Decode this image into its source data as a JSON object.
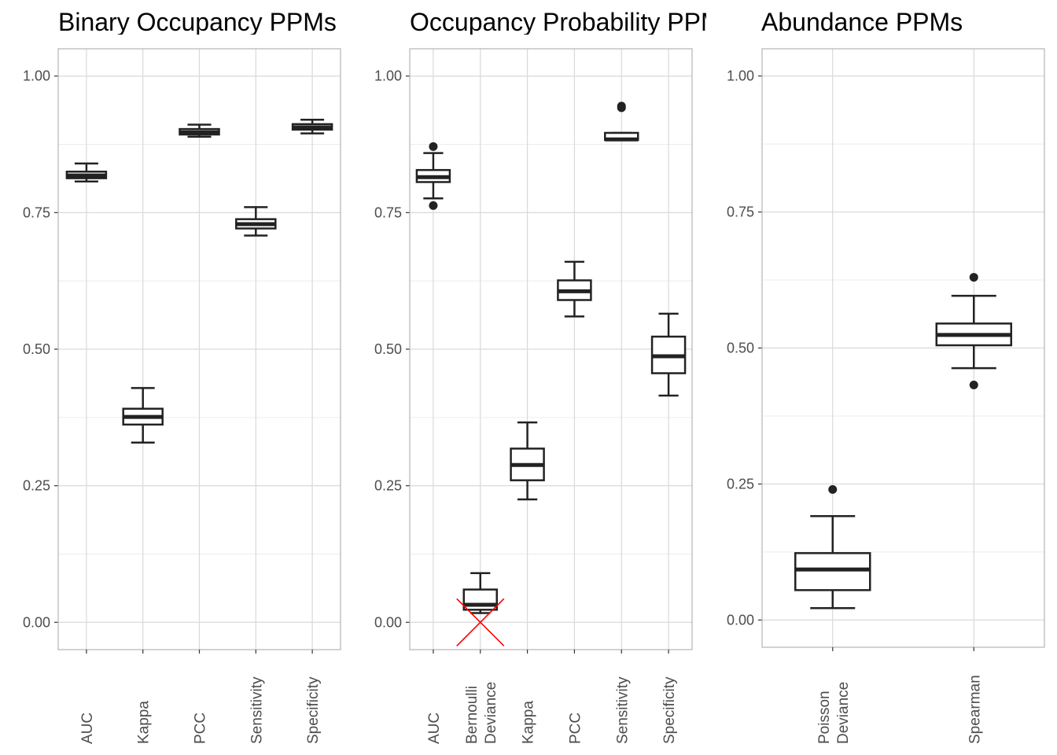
{
  "chart_data": [
    {
      "type": "box",
      "title": "Binary Occupancy PPMs",
      "ylim": [
        -0.05,
        1.05
      ],
      "yticks": [
        "0.00",
        "0.25",
        "0.50",
        "0.75",
        "1.00"
      ],
      "grid": true,
      "categories": [
        "AUC",
        "Kappa",
        "PCC",
        "Sensitivity",
        "Specificity"
      ],
      "boxes": [
        {
          "min": 0.807,
          "q1": 0.813,
          "median": 0.818,
          "q3": 0.825,
          "max": 0.84,
          "outliers": []
        },
        {
          "min": 0.329,
          "q1": 0.362,
          "median": 0.376,
          "q3": 0.391,
          "max": 0.429,
          "outliers": []
        },
        {
          "min": 0.889,
          "q1": 0.893,
          "median": 0.897,
          "q3": 0.903,
          "max": 0.911,
          "outliers": []
        },
        {
          "min": 0.708,
          "q1": 0.721,
          "median": 0.729,
          "q3": 0.738,
          "max": 0.76,
          "outliers": []
        },
        {
          "min": 0.895,
          "q1": 0.902,
          "median": 0.906,
          "q3": 0.912,
          "max": 0.92,
          "outliers": []
        }
      ]
    },
    {
      "type": "box",
      "title": "Occupancy Probability PPMs",
      "ylim": [
        -0.05,
        1.05
      ],
      "yticks": [
        "0.00",
        "0.25",
        "0.50",
        "0.75",
        "1.00"
      ],
      "grid": true,
      "categories": [
        "AUC",
        "Bernoulli\nDeviance",
        "Kappa",
        "PCC",
        "Sensitivity",
        "Specificity"
      ],
      "crossed_out": "Bernoulli\nDeviance",
      "boxes": [
        {
          "min": 0.776,
          "q1": 0.806,
          "median": 0.815,
          "q3": 0.828,
          "max": 0.859,
          "outliers": [
            0.871,
            0.763
          ]
        },
        {
          "min": 0.017,
          "q1": 0.023,
          "median": 0.032,
          "q3": 0.06,
          "max": 0.09,
          "outliers": []
        },
        {
          "min": 0.225,
          "q1": 0.26,
          "median": 0.288,
          "q3": 0.318,
          "max": 0.366,
          "outliers": []
        },
        {
          "min": 0.56,
          "q1": 0.59,
          "median": 0.606,
          "q3": 0.626,
          "max": 0.66,
          "outliers": []
        },
        {
          "min": 0.883,
          "q1": 0.883,
          "median": 0.884,
          "q3": 0.896,
          "max": 0.896,
          "outliers": [
            0.942,
            0.945
          ]
        },
        {
          "min": 0.415,
          "q1": 0.456,
          "median": 0.487,
          "q3": 0.523,
          "max": 0.565,
          "outliers": []
        }
      ]
    },
    {
      "type": "box",
      "title": "Abundance PPMs",
      "ylim": [
        -0.05,
        1.05
      ],
      "yticks": [
        "0.00",
        "0.25",
        "0.50",
        "0.75",
        "1.00"
      ],
      "grid": true,
      "categories": [
        "Poisson\nDeviance",
        "Spearman"
      ],
      "boxes": [
        {
          "min": 0.022,
          "q1": 0.055,
          "median": 0.093,
          "q3": 0.123,
          "max": 0.191,
          "outliers": [
            0.24
          ]
        },
        {
          "min": 0.463,
          "q1": 0.505,
          "median": 0.524,
          "q3": 0.545,
          "max": 0.596,
          "outliers": [
            0.63,
            0.432
          ]
        }
      ]
    }
  ]
}
